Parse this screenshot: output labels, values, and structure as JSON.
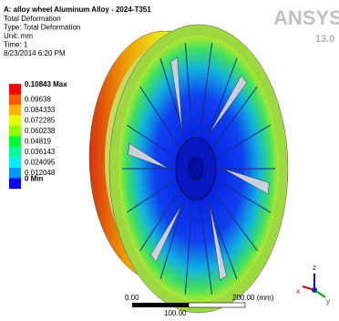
{
  "header": {
    "title": "A: alloy wheel Aluminum Alloy - 2024-T351",
    "lines": [
      "Total Deformation",
      "Type: Total Deformation",
      "Unit: mm",
      "Time: 1",
      "8/23/2014 6:20 PM"
    ]
  },
  "legend": [
    {
      "label": "0.10843 Max",
      "color": "#ff0000"
    },
    {
      "label": "0.09638",
      "color": "#ff5a00"
    },
    {
      "label": "0.084333",
      "color": "#ffb400"
    },
    {
      "label": "0.072285",
      "color": "#e6ff00"
    },
    {
      "label": "0.060238",
      "color": "#8cff00"
    },
    {
      "label": "0.04819",
      "color": "#00ff32"
    },
    {
      "label": "0.036143",
      "color": "#00ff96"
    },
    {
      "label": "0.024095",
      "color": "#00f0ff"
    },
    {
      "label": "0.012048",
      "color": "#0096ff"
    },
    {
      "label": "0 Min",
      "color": "#0000ff"
    }
  ],
  "logo": {
    "brand": "ANSYS",
    "version": "13.0"
  },
  "scale_bar": {
    "start": "0.00",
    "end": "200.00 (mm)",
    "mid": "100.00"
  },
  "triad": {
    "x": "x",
    "y": "y",
    "z": "z"
  }
}
